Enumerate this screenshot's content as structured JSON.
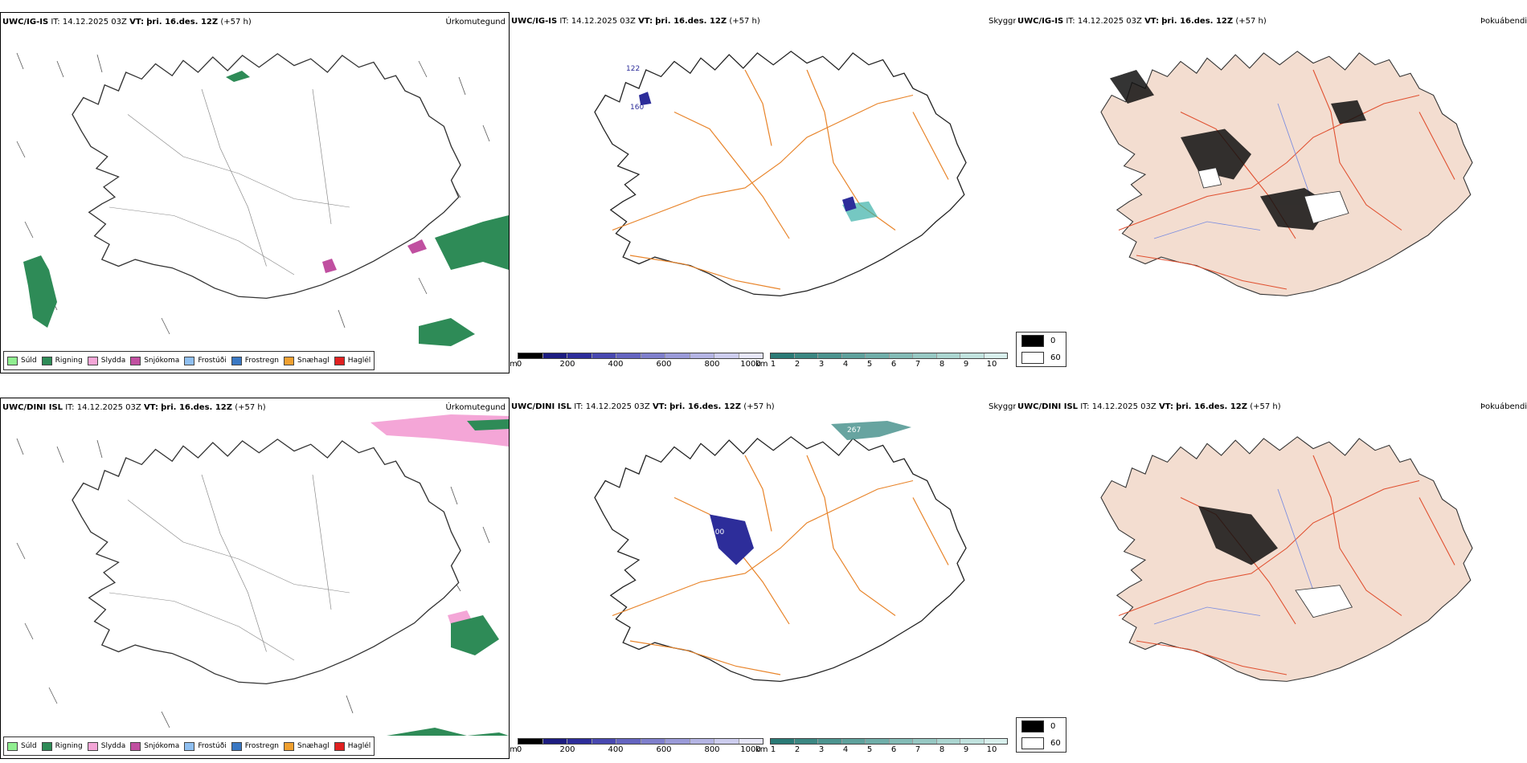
{
  "rows": [
    {
      "model": "UWC/IG-IS",
      "it": "IT: 14.12.2025 03Z",
      "vt_label": "VT:",
      "vt_value": "þri. 16.des. 12Z",
      "lead": "(+57 h)"
    },
    {
      "model": "UWC/DINI ISL",
      "it": "IT: 14.12.2025 03Z",
      "vt_label": "VT:",
      "vt_value": "þri. 16.des. 12Z",
      "lead": "(+57 h)"
    }
  ],
  "panel_titles": {
    "precip": "Úrkomutegund",
    "ceiling": "Skyggni",
    "fog": "Þokuábendi"
  },
  "precip_legend": [
    {
      "label": "Súld",
      "color": "#90ee90"
    },
    {
      "label": "Rigning",
      "color": "#2e8b57"
    },
    {
      "label": "Slydda",
      "color": "#f4a6d7"
    },
    {
      "label": "Snjókoma",
      "color": "#c04fa0"
    },
    {
      "label": "Frostúði",
      "color": "#8fbff0"
    },
    {
      "label": "Frostregn",
      "color": "#3a78c3"
    },
    {
      "label": "Snæhagl",
      "color": "#f0a030"
    },
    {
      "label": "Haglél",
      "color": "#e02020"
    }
  ],
  "ceiling_scale": {
    "unit": "m",
    "ticks": [
      "0",
      "200",
      "400",
      "600",
      "800",
      "1000"
    ],
    "colors": [
      "#000000",
      "#1c1c80",
      "#2d2d9a",
      "#4848b0",
      "#6464c0",
      "#7f7fcc",
      "#9a9ad8",
      "#b4b4e3",
      "#cdcdee",
      "#e6e6f7"
    ]
  },
  "vis_scale": {
    "unit": "km",
    "ticks": [
      "1",
      "2",
      "3",
      "4",
      "5",
      "6",
      "7",
      "8",
      "9",
      "10"
    ],
    "colors": [
      "#2a7a76",
      "#3b8782",
      "#4c948f",
      "#5ea19c",
      "#70aea9",
      "#83bbb6",
      "#97c8c3",
      "#abd5d0",
      "#c1e2de",
      "#d8efec"
    ]
  },
  "fog_legend": [
    {
      "label": "0",
      "color": "#000000"
    },
    {
      "label": "60",
      "color": "#ffffff"
    }
  ],
  "map_labels": {
    "top_ceiling": [
      "122",
      "160"
    ],
    "bottom_ceiling": [
      "100"
    ],
    "bottom_vis": [
      "267"
    ]
  }
}
